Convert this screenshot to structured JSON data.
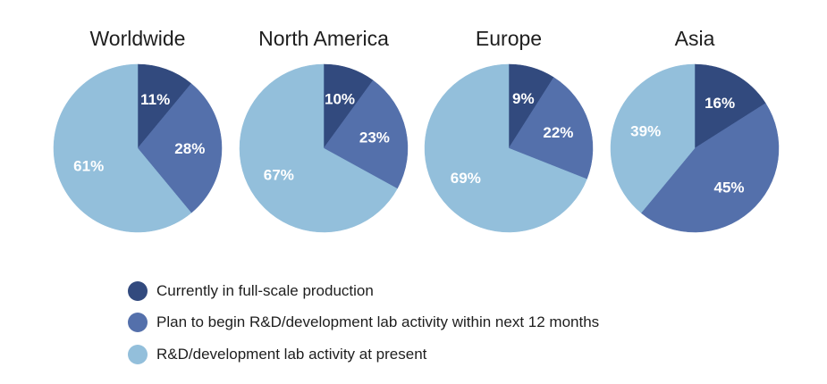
{
  "chart_data": {
    "type": "pie",
    "series_names": [
      "Currently in full-scale production",
      "Plan to begin R&D/development lab activity within next 12 months",
      "R&D/development lab activity at present"
    ],
    "colors": [
      "#324a7e",
      "#5470ab",
      "#93bfdb"
    ],
    "label_color": "#ffffff",
    "charts": [
      {
        "title": "Worldwide",
        "values": [
          11,
          28,
          61
        ],
        "labels": [
          "11%",
          "28%",
          "61%"
        ]
      },
      {
        "title": "North America",
        "values": [
          10,
          23,
          67
        ],
        "labels": [
          "10%",
          "23%",
          "67%"
        ]
      },
      {
        "title": "Europe",
        "values": [
          9,
          22,
          69
        ],
        "labels": [
          "9%",
          "22%",
          "69%"
        ]
      },
      {
        "title": "Asia",
        "values": [
          16,
          45,
          39
        ],
        "labels": [
          "16%",
          "45%",
          "39%"
        ]
      }
    ],
    "legend": {
      "placement": "bottom",
      "items": [
        "Currently in full-scale production",
        "Plan to begin R&D/development lab activity within next 12 months",
        "R&D/development lab activity at present"
      ]
    }
  }
}
